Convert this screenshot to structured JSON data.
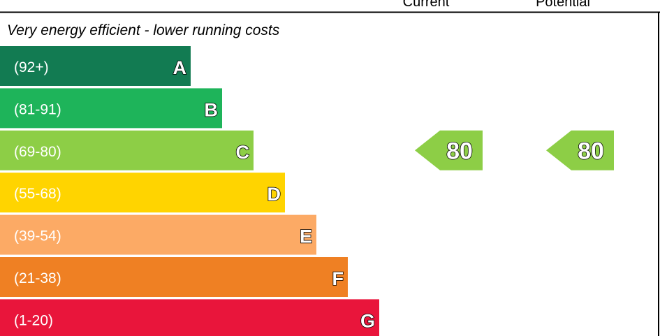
{
  "chart_data": {
    "type": "bar",
    "columns": {
      "current": "Current",
      "potential": "Potential"
    },
    "caption_top": "Very energy efficient - lower running costs",
    "bands": [
      {
        "letter": "A",
        "range": "(92+)",
        "color": "#127b52"
      },
      {
        "letter": "B",
        "range": "(81-91)",
        "color": "#1eb45a"
      },
      {
        "letter": "C",
        "range": "(69-80)",
        "color": "#8dce46"
      },
      {
        "letter": "D",
        "range": "(55-68)",
        "color": "#ffd400"
      },
      {
        "letter": "E",
        "range": "(39-54)",
        "color": "#fcaa65"
      },
      {
        "letter": "F",
        "range": "(21-38)",
        "color": "#ef8023"
      },
      {
        "letter": "G",
        "range": "(1-20)",
        "color": "#e9153b"
      }
    ],
    "current": {
      "value": 80,
      "band": "C",
      "color": "#8dce46"
    },
    "potential": {
      "value": 80,
      "band": "C",
      "color": "#8dce46"
    }
  }
}
